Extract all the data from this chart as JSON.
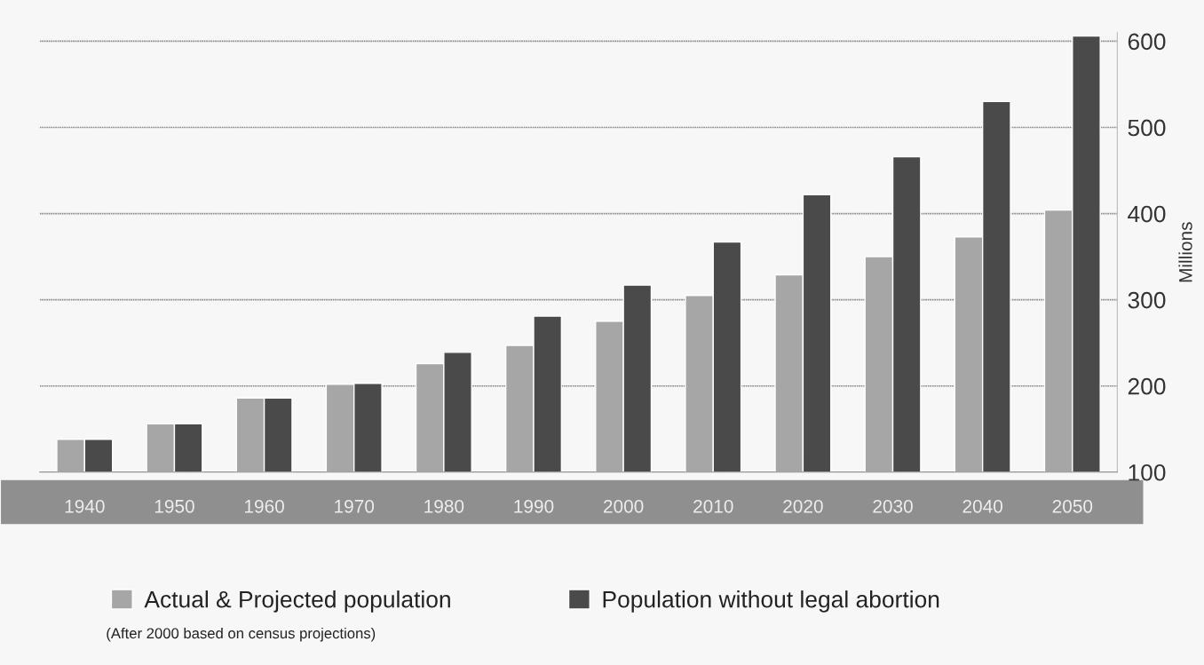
{
  "chart_data": {
    "type": "bar",
    "ylabel": "Millions",
    "categories": [
      "1940",
      "1950",
      "1960",
      "1970",
      "1980",
      "1990",
      "2000",
      "2010",
      "2020",
      "2030",
      "2040",
      "2050"
    ],
    "series": [
      {
        "name": "Actual & Projected population",
        "color": "#a6a6a6",
        "values": [
          138,
          156,
          186,
          202,
          226,
          247,
          275,
          305,
          329,
          350,
          373,
          404
        ]
      },
      {
        "name": "Population without legal abortion",
        "color": "#4a4a4a",
        "values": [
          138,
          156,
          186,
          203,
          239,
          281,
          317,
          367,
          422,
          466,
          530,
          606
        ]
      }
    ],
    "ylim": [
      100,
      610
    ],
    "yticks": [
      100,
      200,
      300,
      400,
      500,
      600
    ],
    "grid": "y",
    "legend": "bottom",
    "annotations": [
      "(After 2000 based on census projections)"
    ]
  }
}
